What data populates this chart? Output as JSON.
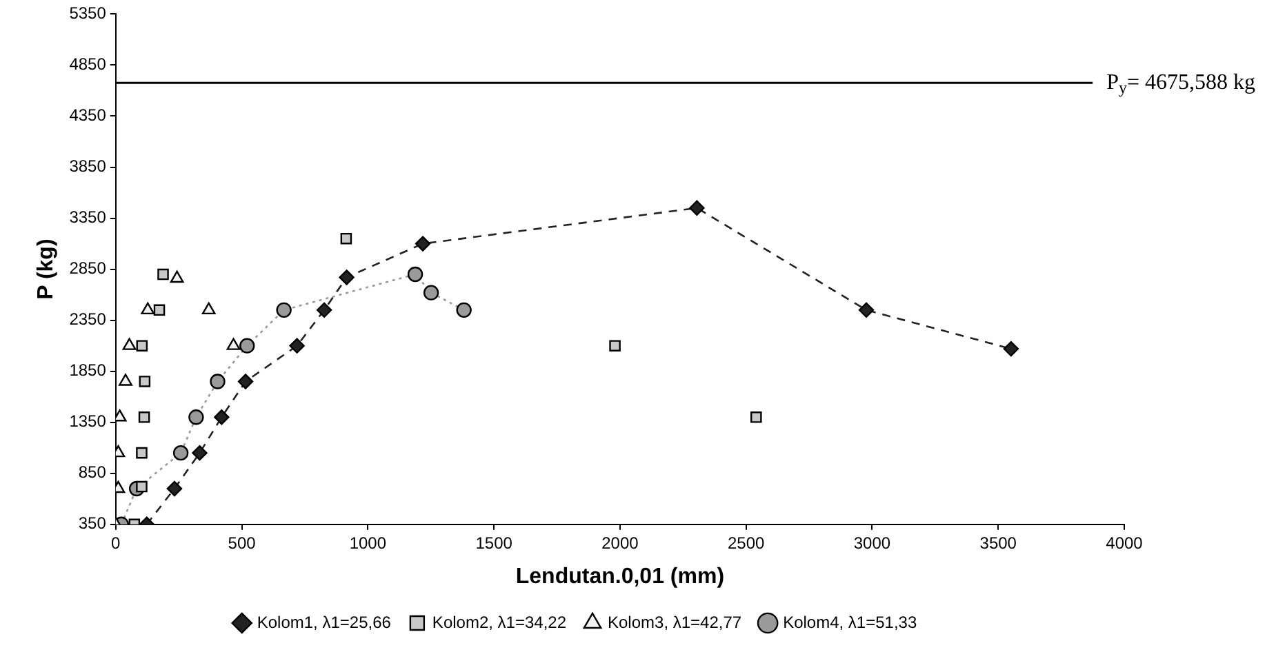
{
  "chart_data": {
    "type": "scatter",
    "xlabel": "Lendutan.0,01 (mm)",
    "ylabel": "P (kg)",
    "xlim": [
      0,
      4000
    ],
    "xticks": [
      0,
      500,
      1000,
      1500,
      2000,
      2500,
      3000,
      3500,
      4000
    ],
    "ylim": [
      350,
      5350
    ],
    "yticks": [
      350,
      850,
      1350,
      1850,
      2350,
      2850,
      3350,
      3850,
      4350,
      4850,
      5350
    ],
    "grid": false,
    "legend": "bottom",
    "ref_lines": [
      {
        "axis": "y",
        "value": 4675.588,
        "label": "P$_{y}$= 4675,588 kg",
        "color": "#000000"
      }
    ],
    "series": [
      {
        "name": "Kolom1, λ1=25,66",
        "type": "line",
        "marker": "diamond",
        "line_style": "dashed",
        "color": "#222222",
        "x": [
          123,
          233,
          333,
          420,
          515,
          719,
          827,
          916,
          1218,
          2305,
          2977,
          3551
        ],
        "values": [
          350,
          700,
          1050,
          1400,
          1750,
          2100,
          2450,
          2770,
          3100,
          3450,
          2450,
          2070
        ]
      },
      {
        "name": "Kolom2, λ1=34,22",
        "marker": "square",
        "color": "#c8c8c8",
        "x": [
          74,
          103,
          103,
          113,
          115,
          104,
          173,
          188,
          914,
          1980,
          2540
        ],
        "values": [
          350,
          720,
          1050,
          1400,
          1750,
          2100,
          2450,
          2800,
          3150,
          2100,
          1400
        ]
      },
      {
        "name": "Kolom3, λ1=42,77",
        "marker": "triangle",
        "color": "#f2f2f2",
        "x": [
          0,
          10,
          10,
          16,
          39,
          54,
          127,
          243,
          369,
          467
        ],
        "values": [
          350,
          700,
          1050,
          1400,
          1750,
          2100,
          2450,
          2760,
          2450,
          2100
        ]
      },
      {
        "name": "Kolom4, λ1=51,33",
        "type": "line",
        "marker": "circle",
        "line_style": "dotted",
        "color": "#9a9a9a",
        "x": [
          22,
          83,
          258,
          319,
          404,
          521,
          667,
          1188,
          1251,
          1381
        ],
        "values": [
          350,
          700,
          1050,
          1400,
          1750,
          2100,
          2450,
          2800,
          2620,
          2450
        ]
      }
    ]
  }
}
